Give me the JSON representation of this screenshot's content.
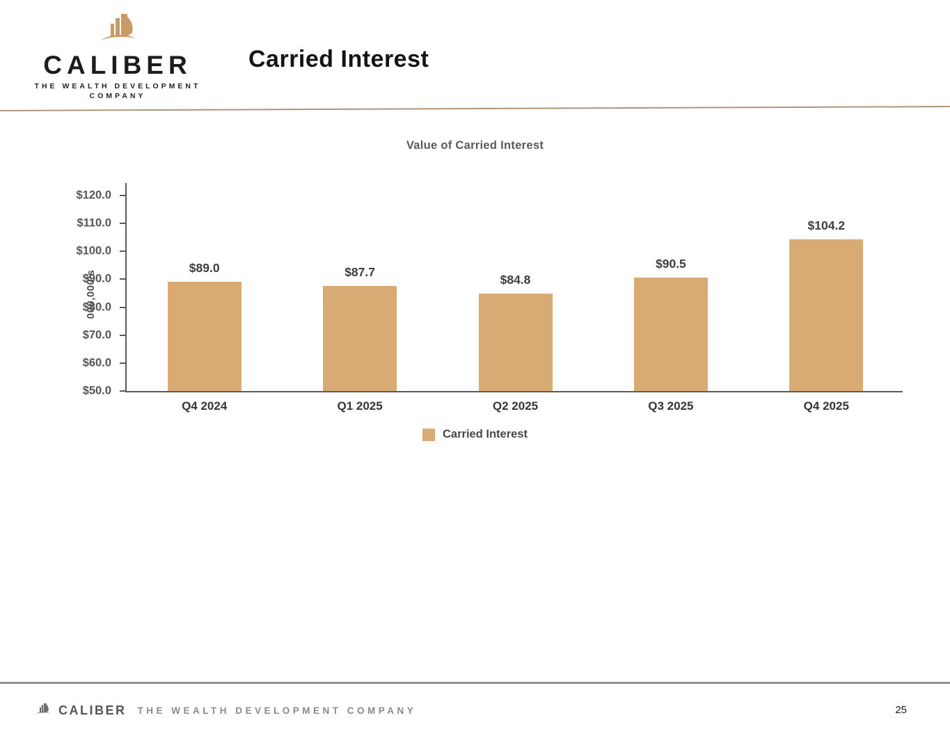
{
  "header": {
    "logo_name": "CALIBER",
    "logo_tagline": "THE WEALTH DEVELOPMENT\nCOMPANY",
    "page_title": "Carried Interest"
  },
  "chart_data": {
    "type": "bar",
    "title": "Value of Carried Interest",
    "categories": [
      "Q4 2024",
      "Q1 2025",
      "Q2 2025",
      "Q3 2025",
      "Q4 2025"
    ],
    "values": [
      89.0,
      87.7,
      84.8,
      90.5,
      104.2
    ],
    "bar_labels": [
      "$89.0",
      "$87.7",
      "$84.8",
      "$90.5",
      "$104.2"
    ],
    "xlabel": "",
    "ylabel": "000,000's",
    "ylim": [
      50,
      120
    ],
    "ytick_step": 10,
    "ytick_labels": [
      "$50.0",
      "$60.0",
      "$70.0",
      "$80.0",
      "$90.0",
      "$100.0",
      "$110.0",
      "$120.0"
    ],
    "grid": false,
    "legend_position": "bottom",
    "series": [
      {
        "name": "Carried Interest",
        "color": "#d8ab74"
      }
    ]
  },
  "footer": {
    "logo_name": "CALIBER",
    "tagline": "THE WEALTH DEVELOPMENT COMPANY",
    "page_number": "25"
  },
  "colors": {
    "bar": "#d8ab74",
    "logo_gold": "#c89a66",
    "top_rule": "#9c7d5e",
    "axis": "#5a5a5a",
    "footer_rule": "#8f8f8f"
  }
}
